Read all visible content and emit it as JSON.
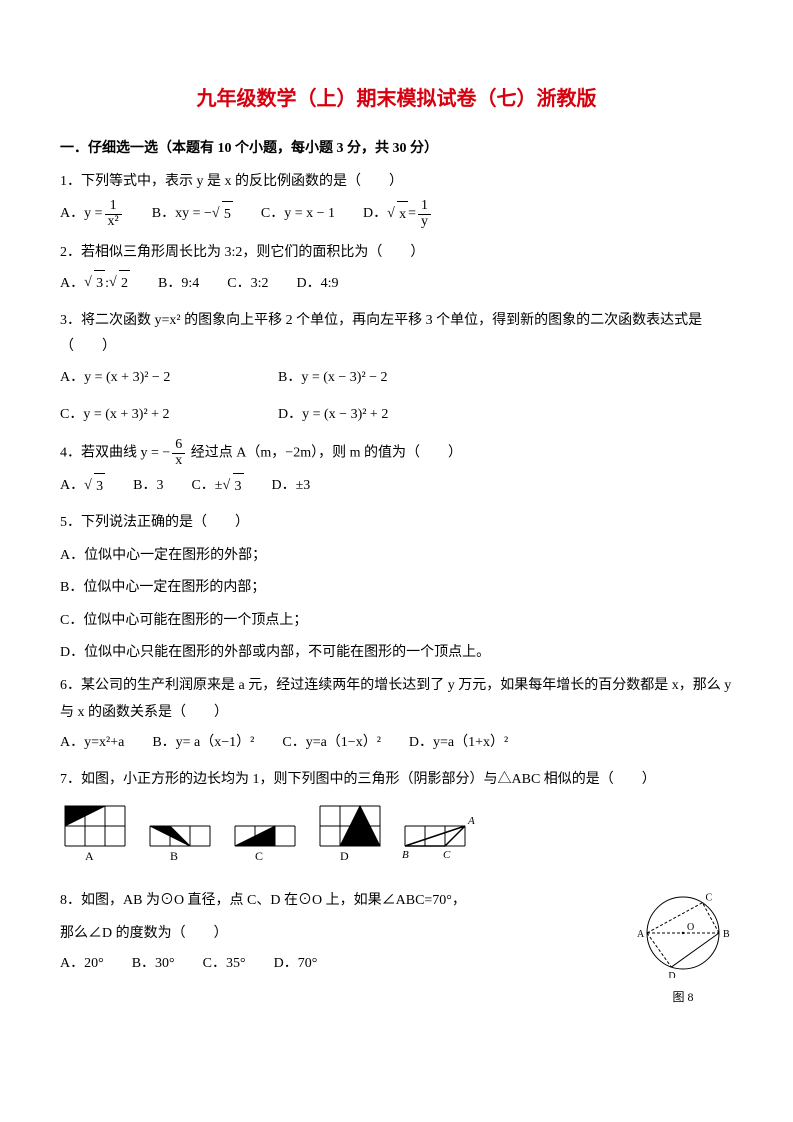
{
  "title": "九年级数学（上）期末模拟试卷（七）浙教版",
  "section": "一．仔细选一选（本题有 10 个小题，每小题 3 分，共 30 分）",
  "q1": {
    "stem": "1．下列等式中，表示 y 是 x 的反比例函数的是（　　）",
    "A": "A．",
    "B": "B．",
    "C": "C．y = x − 1",
    "D": "D．",
    "a_eq_lhs": "y =",
    "a_num": "1",
    "a_den": "x²",
    "b_eq": "xy = −",
    "b_rad": "5",
    "d_lhs_rad": "x",
    "d_eq": " = ",
    "d_num": "1",
    "d_den": "y"
  },
  "q2": {
    "stem": "2．若相似三角形周长比为 3:2，则它们的面积比为（　　）",
    "A": "A．",
    "a_rad1": "3",
    "a_colon": " : ",
    "a_rad2": "2",
    "B": "B．9:4",
    "C": "C．3:2",
    "D": "D．4:9"
  },
  "q3": {
    "stem": "3．将二次函数 y=x² 的图象向上平移 2 个单位，再向左平移 3 个单位，得到新的图象的二次函数表达式是（　　）",
    "A": "A．y = (x + 3)² − 2",
    "B": "B．y = (x − 3)² − 2",
    "C": "C．y = (x + 3)² + 2",
    "D": "D．y = (x − 3)² + 2"
  },
  "q4": {
    "stem_a": "4．若双曲线 ",
    "stem_b": " 经过点 A（m，−2m），则 m 的值为（　　）",
    "eq_lhs": "y = −",
    "eq_num": "6",
    "eq_den": "x",
    "A": "A．",
    "a_rad": "3",
    "B": "B．3",
    "C": "C．±",
    "c_rad": "3",
    "D": "D．±3"
  },
  "q5": {
    "stem": "5．下列说法正确的是（　　）",
    "A": "A．位似中心一定在图形的外部；",
    "B": "B．位似中心一定在图形的内部；",
    "C": "C．位似中心可能在图形的一个顶点上；",
    "D": "D．位似中心只能在图形的外部或内部，不可能在图形的一个顶点上。"
  },
  "q6": {
    "stem": "6．某公司的生产利润原来是 a 元，经过连续两年的增长达到了 y 万元，如果每年增长的百分数都是 x，那么 y 与 x 的函数关系是（　　）",
    "A": "A．y=x²+a",
    "B": "B．y= a（x−1）²",
    "C": "C．y=a（1−x）²",
    "D": "D．y=a（1+x）²"
  },
  "q7": {
    "stem": "7．如图，小正方形的边长均为 1，则下列图中的三角形（阴影部分）与△ABC 相似的是（　　）",
    "labels": {
      "A": "A",
      "B": "B",
      "C": "C",
      "D": "D",
      "ref_B": "B",
      "ref_C": "C",
      "ref_A": "A"
    }
  },
  "q8": {
    "stem1": "8．如图，AB 为⊙O 直径，点 C、D 在⊙O 上，如果∠ABC=70°，",
    "stem2": "那么∠D 的度数为（　　）",
    "A": "A．20°",
    "B": "B．30°",
    "C": "C．35°",
    "D": "D．70°",
    "fig": "图 8"
  },
  "svg": {
    "q7": {
      "unit": 20,
      "stroke": "#000000",
      "fill": "#000000",
      "bg": "#ffffff",
      "optA": {
        "grid_cols": 3,
        "grid_rows": 2,
        "tri": [
          [
            0,
            0
          ],
          [
            2,
            0
          ],
          [
            0,
            1
          ]
        ]
      },
      "optB": {
        "grid_cols": 3,
        "grid_rows": 1,
        "tri": [
          [
            0,
            0
          ],
          [
            1,
            0
          ],
          [
            2,
            1
          ]
        ]
      },
      "optC": {
        "grid_cols": 3,
        "grid_rows": 1,
        "tri": [
          [
            0,
            1
          ],
          [
            2,
            0
          ],
          [
            2,
            1
          ]
        ]
      },
      "optD": {
        "grid_cols": 3,
        "grid_rows": 2,
        "tri": [
          [
            1,
            2
          ],
          [
            2,
            0
          ],
          [
            3,
            2
          ]
        ]
      },
      "ref": {
        "grid_cols": 3,
        "grid_rows": 1,
        "tri": [
          [
            0,
            1
          ],
          [
            2,
            1
          ],
          [
            3,
            0
          ]
        ]
      }
    },
    "q8": {
      "r": 36,
      "stroke": "#000000"
    }
  }
}
